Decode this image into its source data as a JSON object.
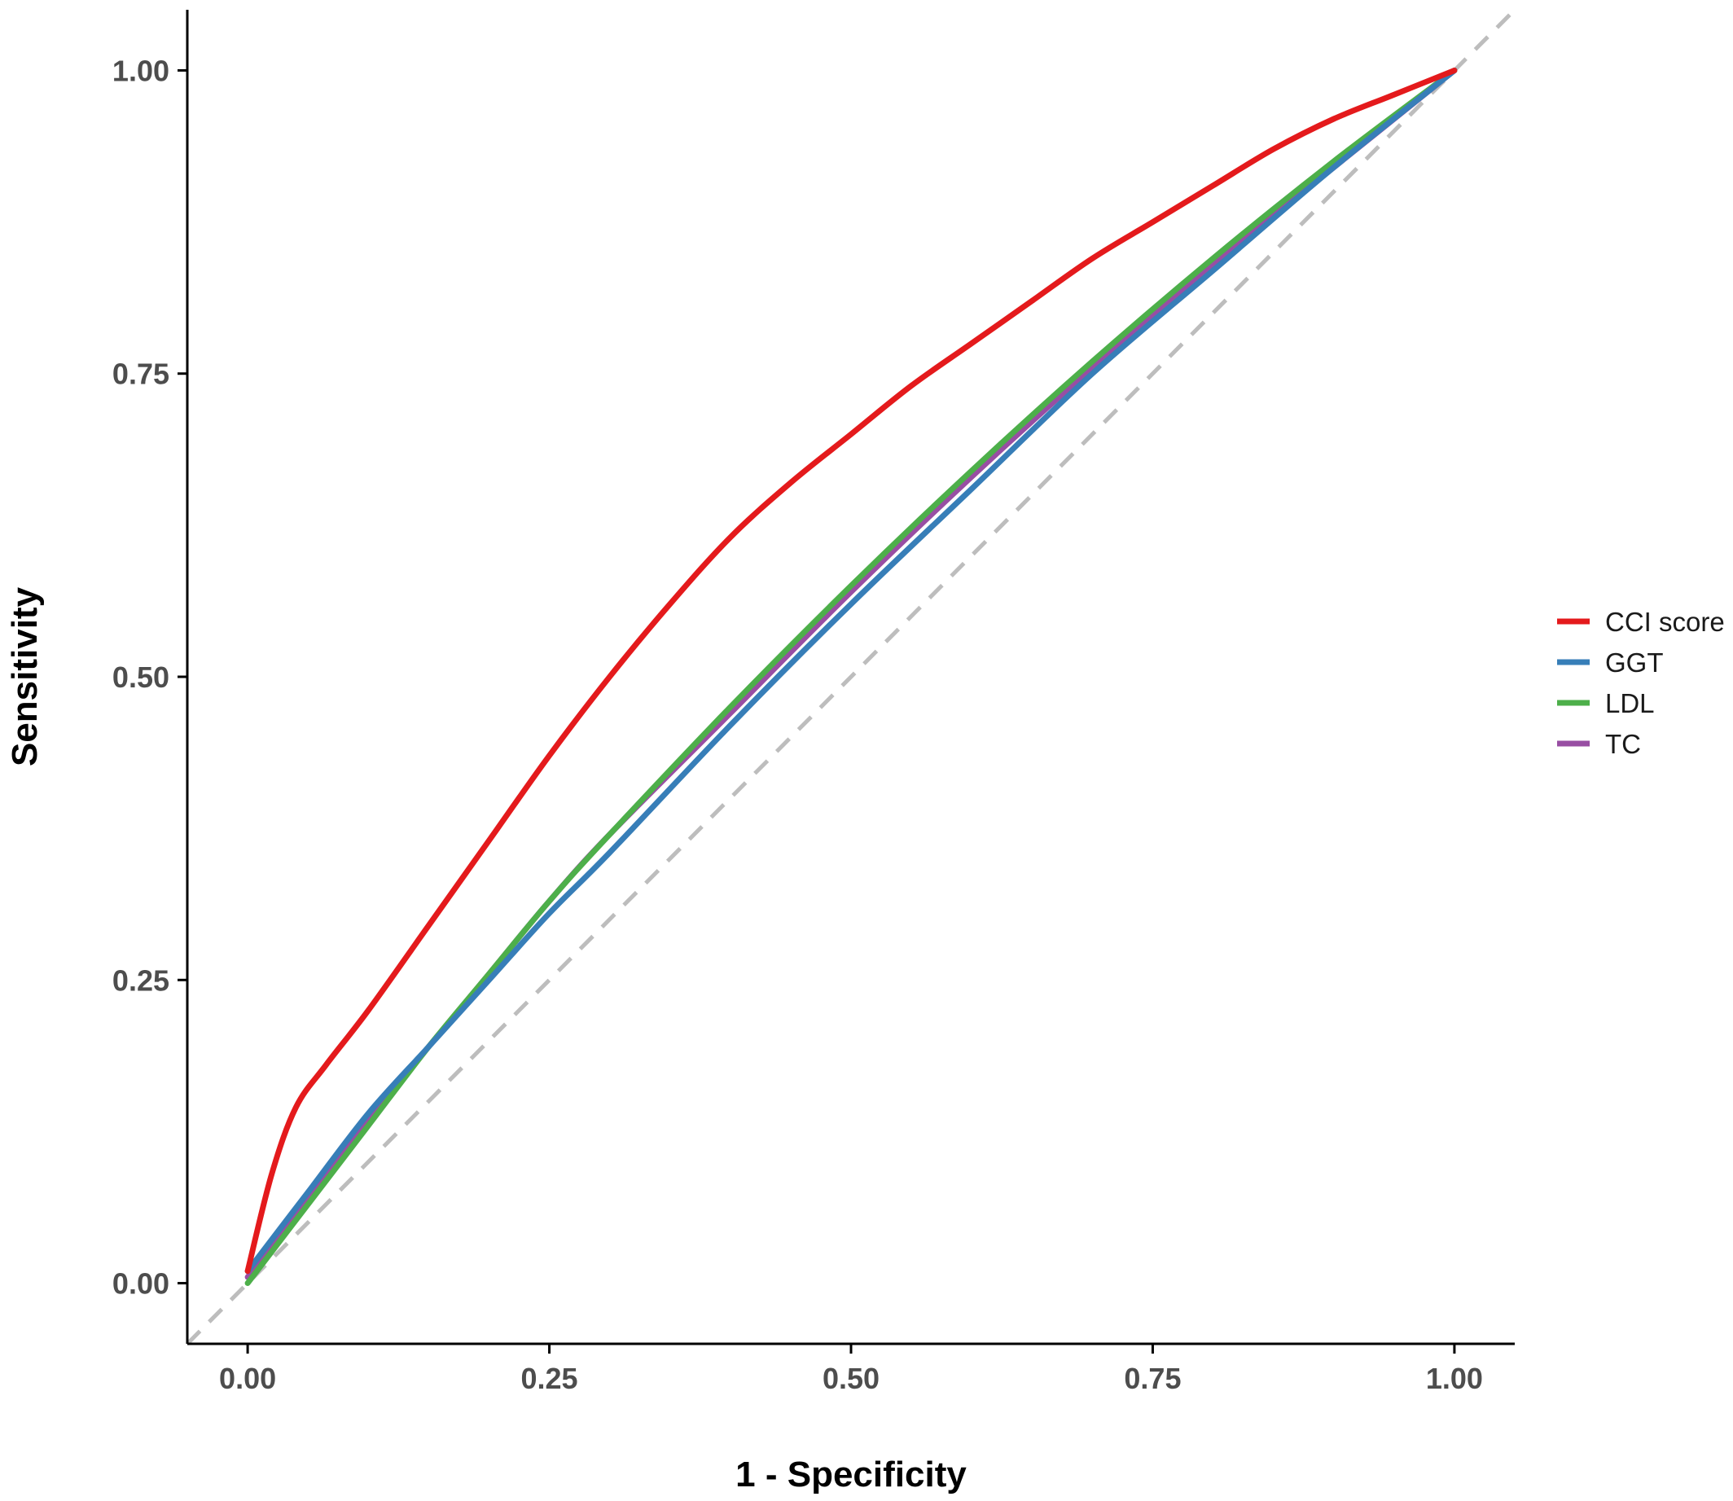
{
  "chart_data": {
    "type": "line",
    "title": "",
    "xlabel": "1 - Specificity",
    "ylabel": "Sensitivity",
    "xlim": [
      -0.05,
      1.05
    ],
    "ylim": [
      -0.05,
      1.05
    ],
    "x_ticks": [
      "0.00",
      "0.25",
      "0.50",
      "0.75",
      "1.00"
    ],
    "y_ticks": [
      "0.00",
      "0.25",
      "0.50",
      "0.75",
      "1.00"
    ],
    "grid": false,
    "legend_position": "right",
    "reference_line": {
      "style": "dashed",
      "color": "#bdbdbd",
      "from": [
        -0.05,
        -0.05
      ],
      "to": [
        1.05,
        1.05
      ]
    },
    "series": [
      {
        "name": "CCI score",
        "color": "#e41a1c",
        "points": [
          [
            0,
            0.01
          ],
          [
            0.02,
            0.09
          ],
          [
            0.04,
            0.145
          ],
          [
            0.065,
            0.18
          ],
          [
            0.1,
            0.225
          ],
          [
            0.15,
            0.295
          ],
          [
            0.2,
            0.365
          ],
          [
            0.25,
            0.435
          ],
          [
            0.3,
            0.5
          ],
          [
            0.35,
            0.56
          ],
          [
            0.4,
            0.615
          ],
          [
            0.45,
            0.66
          ],
          [
            0.5,
            0.7
          ],
          [
            0.55,
            0.74
          ],
          [
            0.6,
            0.775
          ],
          [
            0.65,
            0.81
          ],
          [
            0.7,
            0.845
          ],
          [
            0.75,
            0.875
          ],
          [
            0.8,
            0.905
          ],
          [
            0.85,
            0.935
          ],
          [
            0.9,
            0.96
          ],
          [
            0.95,
            0.98
          ],
          [
            1.0,
            1.0
          ]
        ]
      },
      {
        "name": "GGT",
        "color": "#377eb8",
        "points": [
          [
            0,
            0.01
          ],
          [
            0.05,
            0.075
          ],
          [
            0.1,
            0.14
          ],
          [
            0.15,
            0.195
          ],
          [
            0.2,
            0.25
          ],
          [
            0.25,
            0.305
          ],
          [
            0.3,
            0.355
          ],
          [
            0.4,
            0.46
          ],
          [
            0.5,
            0.56
          ],
          [
            0.6,
            0.655
          ],
          [
            0.7,
            0.75
          ],
          [
            0.8,
            0.835
          ],
          [
            0.9,
            0.92
          ],
          [
            1.0,
            1.0
          ]
        ]
      },
      {
        "name": "LDL",
        "color": "#4daf4a",
        "points": [
          [
            0,
            0.0
          ],
          [
            0.05,
            0.065
          ],
          [
            0.1,
            0.13
          ],
          [
            0.15,
            0.195
          ],
          [
            0.2,
            0.255
          ],
          [
            0.25,
            0.315
          ],
          [
            0.3,
            0.37
          ],
          [
            0.4,
            0.475
          ],
          [
            0.5,
            0.575
          ],
          [
            0.6,
            0.67
          ],
          [
            0.7,
            0.76
          ],
          [
            0.8,
            0.845
          ],
          [
            0.9,
            0.925
          ],
          [
            1.0,
            1.0
          ]
        ]
      },
      {
        "name": "TC",
        "color": "#984ea3",
        "points": [
          [
            0,
            0.005
          ],
          [
            0.05,
            0.07
          ],
          [
            0.1,
            0.135
          ],
          [
            0.15,
            0.195
          ],
          [
            0.2,
            0.255
          ],
          [
            0.25,
            0.315
          ],
          [
            0.3,
            0.37
          ],
          [
            0.4,
            0.47
          ],
          [
            0.5,
            0.57
          ],
          [
            0.6,
            0.665
          ],
          [
            0.7,
            0.755
          ],
          [
            0.8,
            0.84
          ],
          [
            0.9,
            0.92
          ],
          [
            1.0,
            1.0
          ]
        ]
      }
    ]
  }
}
